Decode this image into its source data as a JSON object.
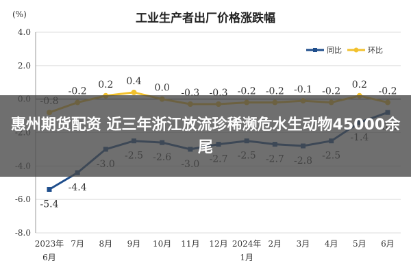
{
  "banner": {
    "headline": "惠州期货配资 近三年浙江放流珍稀濒危水生动物45000余尾"
  },
  "chart_data": {
    "type": "line",
    "title": "工业生产者出厂价格涨跌幅",
    "unit_label": "(%)",
    "categories": [
      "2023年6月",
      "7月",
      "8月",
      "9月",
      "10月",
      "11月",
      "12月",
      "2024年1月",
      "2月",
      "3月",
      "4月",
      "5月",
      "6月"
    ],
    "category_lines": [
      [
        "2023年",
        "6月"
      ],
      [
        "7月"
      ],
      [
        "8月"
      ],
      [
        "9月"
      ],
      [
        "10月"
      ],
      [
        "11月"
      ],
      [
        "12月"
      ],
      [
        "2024年",
        "1月"
      ],
      [
        "2月"
      ],
      [
        "3月"
      ],
      [
        "4月"
      ],
      [
        "5月"
      ],
      [
        "6月"
      ]
    ],
    "y_ticks": [
      "4.0",
      "2.0",
      "0.0",
      "-2.0",
      "-4.0",
      "-6.0",
      "-8.0"
    ],
    "y_tick_values": [
      4,
      2,
      0,
      -2,
      -4,
      -6,
      -8
    ],
    "ylim": [
      -8,
      4
    ],
    "grid": true,
    "legend_position": "top-right",
    "series": [
      {
        "name": "同比",
        "color": "#1f4e8c",
        "values": [
          -5.4,
          -4.4,
          -3.0,
          -2.5,
          -2.6,
          -3.0,
          -2.7,
          -2.5,
          -2.7,
          -2.8,
          -2.5,
          -1.4,
          -0.8
        ],
        "labels": [
          "-5.4",
          "-4.4",
          "-3.0",
          "-2.5",
          "-2.6",
          "-3.0",
          "-2.7",
          "-2.5",
          "-2.7",
          "-2.8",
          "-2.5",
          "-1.4",
          "-0.8"
        ]
      },
      {
        "name": "环比",
        "color": "#f2c12e",
        "values": [
          -0.8,
          -0.2,
          0.2,
          0.4,
          0.0,
          -0.3,
          -0.3,
          -0.2,
          -0.2,
          -0.1,
          -0.2,
          0.2,
          -0.2
        ],
        "labels": [
          "-0.8",
          "-0.2",
          "0.2",
          "0.4",
          "0.0",
          "-0.3",
          "-0.3",
          "-0.2",
          "-0.2",
          "-0.1",
          "-0.2",
          "0.2",
          "-0.2"
        ]
      }
    ]
  }
}
